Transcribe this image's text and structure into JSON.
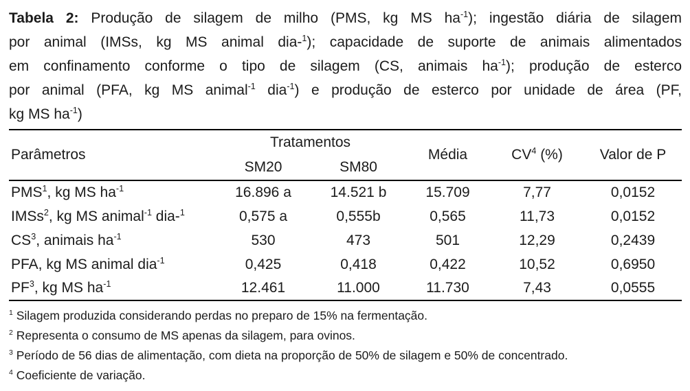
{
  "page": {
    "background": "#ffffff",
    "text_color": "#1b1b1b",
    "rule_color": "#000000"
  },
  "caption": {
    "lines": [
      [
        {
          "t": "Tabela 2:",
          "b": true
        },
        {
          "t": " Produção de silagem de milho (PMS, kg MS ha"
        },
        {
          "t": "-1",
          "sup": true
        },
        {
          "t": "); ingestão diária de silagem"
        }
      ],
      [
        {
          "t": "por animal (IMSs, kg MS animal dia-"
        },
        {
          "t": "1",
          "sup": true
        },
        {
          "t": "); capacidade de suporte de animais alimentados"
        }
      ],
      [
        {
          "t": "em confinamento conforme o tipo de silagem (CS, animais ha"
        },
        {
          "t": "-1",
          "sup": true
        },
        {
          "t": "); produção de esterco"
        }
      ],
      [
        {
          "t": "por animal (PFA, kg MS animal"
        },
        {
          "t": "-1",
          "sup": true
        },
        {
          "t": " dia"
        },
        {
          "t": "-1",
          "sup": true
        },
        {
          "t": ") e produção de esterco por unidade de área (PF,"
        }
      ],
      [
        {
          "t": "kg MS ha"
        },
        {
          "t": "-1",
          "sup": true
        },
        {
          "t": ")"
        }
      ]
    ]
  },
  "table": {
    "header": {
      "treatments_group": "Tratamentos",
      "cv_parts": [
        {
          "t": "CV"
        },
        {
          "t": "4",
          "sup": true
        },
        {
          "t": " (%)"
        }
      ]
    },
    "row_labels": [
      [
        {
          "t": "PMS"
        },
        {
          "t": "1",
          "sup": true
        },
        {
          "t": ", kg MS ha"
        },
        {
          "t": "-1",
          "sup": true
        }
      ],
      [
        {
          "t": "IMSs"
        },
        {
          "t": "2",
          "sup": true
        },
        {
          "t": ", kg MS animal"
        },
        {
          "t": "-1",
          "sup": true
        },
        {
          "t": " dia-"
        },
        {
          "t": "1",
          "sup": true
        }
      ],
      [
        {
          "t": "CS"
        },
        {
          "t": "3",
          "sup": true
        },
        {
          "t": ", animais ha"
        },
        {
          "t": "-1",
          "sup": true
        }
      ],
      [
        {
          "t": "PFA, kg MS animal dia"
        },
        {
          "t": "-1",
          "sup": true
        }
      ],
      [
        {
          "t": "PF"
        },
        {
          "t": "3",
          "sup": true
        },
        {
          "t": ", kg MS ha"
        },
        {
          "t": "-1",
          "sup": true
        }
      ]
    ]
  },
  "chart_data": {
    "type": "table",
    "title": "Tabela 2: Produção de silagem de milho (PMS, kg MS ha⁻¹); ingestão diária de silagem por animal (IMSs, kg MS animal dia⁻¹); capacidade de suporte de animais alimentados em confinamento conforme o tipo de silagem (CS, animais ha⁻¹); produção de esterco por animal (PFA, kg MS animal⁻¹ dia⁻¹) e produção de esterco por unidade de área (PF, kg MS ha⁻¹)",
    "columns": [
      "Parâmetros",
      "SM20",
      "SM80",
      "Média",
      "CV⁴ (%)",
      "Valor de P"
    ],
    "column_groups": [
      {
        "label": "Tratamentos",
        "spans": [
          "SM20",
          "SM80"
        ]
      }
    ],
    "rows": [
      [
        "PMS¹, kg MS ha⁻¹",
        "16.896 a",
        "14.521 b",
        "15.709",
        "7,77",
        "0,0152"
      ],
      [
        "IMSs², kg MS animal⁻¹ dia⁻¹",
        "0,575 a",
        "0,555b",
        "0,565",
        "11,73",
        "0,0152"
      ],
      [
        "CS³, animais ha⁻¹",
        "530",
        "473",
        "501",
        "12,29",
        "0,2439"
      ],
      [
        "PFA, kg MS animal dia⁻¹",
        "0,425",
        "0,418",
        "0,422",
        "10,52",
        "0,6950"
      ],
      [
        "PF³, kg MS ha⁻¹",
        "12.461",
        "11.000",
        "11.730",
        "7,43",
        "0,0555"
      ]
    ]
  },
  "footnotes": [
    [
      {
        "t": "1",
        "sup": true
      },
      {
        "t": " Silagem produzida considerando perdas no preparo de 15% na fermentação."
      }
    ],
    [
      {
        "t": "2",
        "sup": true
      },
      {
        "t": " Representa o consumo de MS apenas da silagem, para ovinos."
      }
    ],
    [
      {
        "t": "3",
        "sup": true
      },
      {
        "t": " Período de 56 dias de alimentação, com dieta na proporção de 50% de silagem e 50% de concentrado."
      }
    ],
    [
      {
        "t": "4",
        "sup": true
      },
      {
        "t": " Coeficiente de variação."
      }
    ]
  ]
}
